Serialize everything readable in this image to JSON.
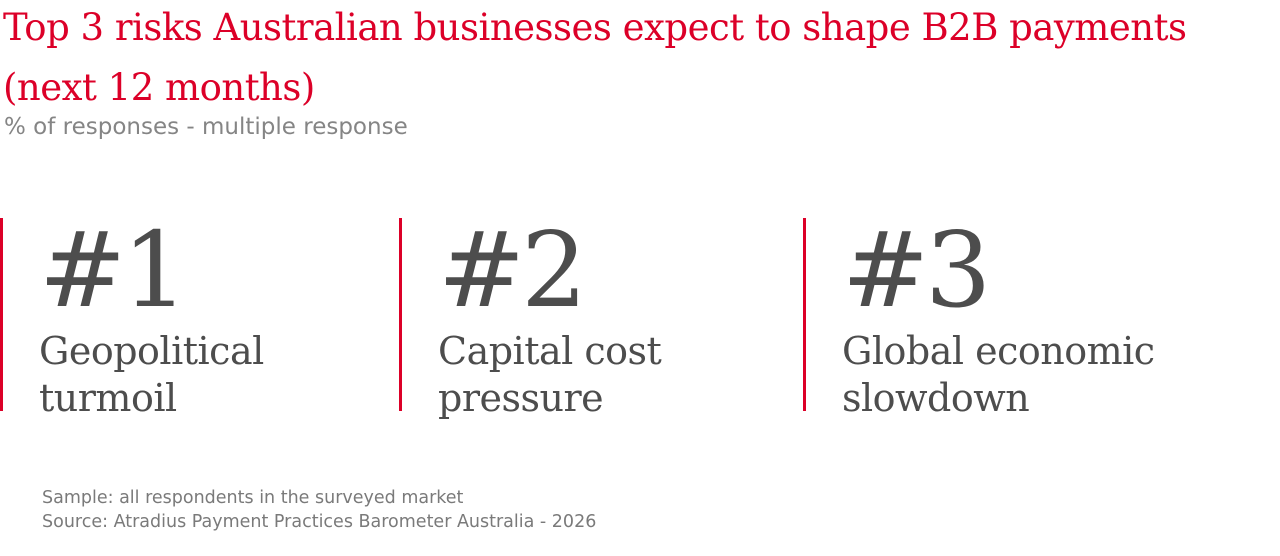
{
  "title": "Top 3 risks Australian businesses expect to shape B2B payments (next 12 months)",
  "subtitle": "% of responses - multiple response",
  "risks": [
    {
      "rank": "#1",
      "label": "Geopolitical turmoil"
    },
    {
      "rank": "#2",
      "label": "Capital cost pressure"
    },
    {
      "rank": "#3",
      "label": "Global economic slowdown"
    }
  ],
  "footer": {
    "sample": "Sample: all respondents in the surveyed market",
    "source": "Source: Atradius Payment Practices Barometer Australia - 2026"
  },
  "colors": {
    "accent": "#dc0028",
    "text": "#4d4d4d",
    "muted": "#858585"
  }
}
